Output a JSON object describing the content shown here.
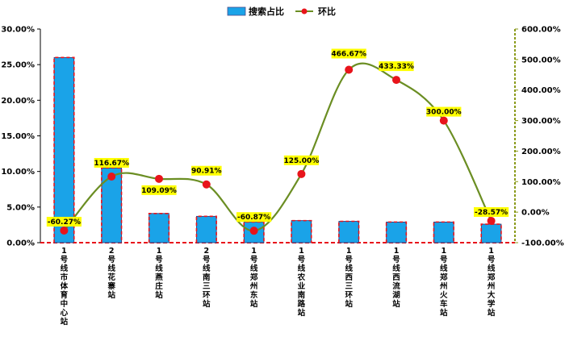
{
  "chart_data": {
    "type": "bar",
    "categories": [
      "1号线市体育中心站",
      "2号线花寨站",
      "1号线燕庄站",
      "2号线南三环站",
      "1号线郑州东站",
      "1号线农业南路站",
      "1号线西三环站",
      "1号线西流湖站",
      "1号线郑州火车站",
      "1号线郑州大学站"
    ],
    "series": [
      {
        "name": "搜索占比",
        "type": "bar",
        "axis": "left",
        "color": "#1aa3e8",
        "values": [
          26.0,
          10.5,
          4.1,
          3.7,
          2.9,
          3.1,
          3.0,
          2.9,
          2.9,
          2.6
        ]
      },
      {
        "name": "环比",
        "type": "line",
        "axis": "right",
        "color": "#6b8e23",
        "marker_color": "#e8141b",
        "values": [
          -60.27,
          116.67,
          109.09,
          90.91,
          -60.87,
          125.0,
          466.67,
          433.33,
          300.0,
          -28.57
        ],
        "labels": [
          "-60.27%",
          "116.67%",
          "109.09%",
          "90.91%",
          "-60.87%",
          "125.00%",
          "466.67%",
          "433.33%",
          "300.00%",
          "-28.57%"
        ]
      }
    ],
    "y_left": {
      "ylim": [
        0,
        30
      ],
      "ticks": [
        "0.00%",
        "5.00%",
        "10.00%",
        "15.00%",
        "20.00%",
        "25.00%",
        "30.00%"
      ]
    },
    "y_right": {
      "ylim": [
        -100,
        600
      ],
      "ticks": [
        "-100.00%",
        "0.00%",
        "100.00%",
        "200.00%",
        "300.00%",
        "400.00%",
        "500.00%",
        "600.00%"
      ]
    },
    "legend": {
      "position": "top-center",
      "items": [
        "搜索占比",
        "环比"
      ]
    },
    "label_bg": "#ffff00",
    "grid": false
  }
}
